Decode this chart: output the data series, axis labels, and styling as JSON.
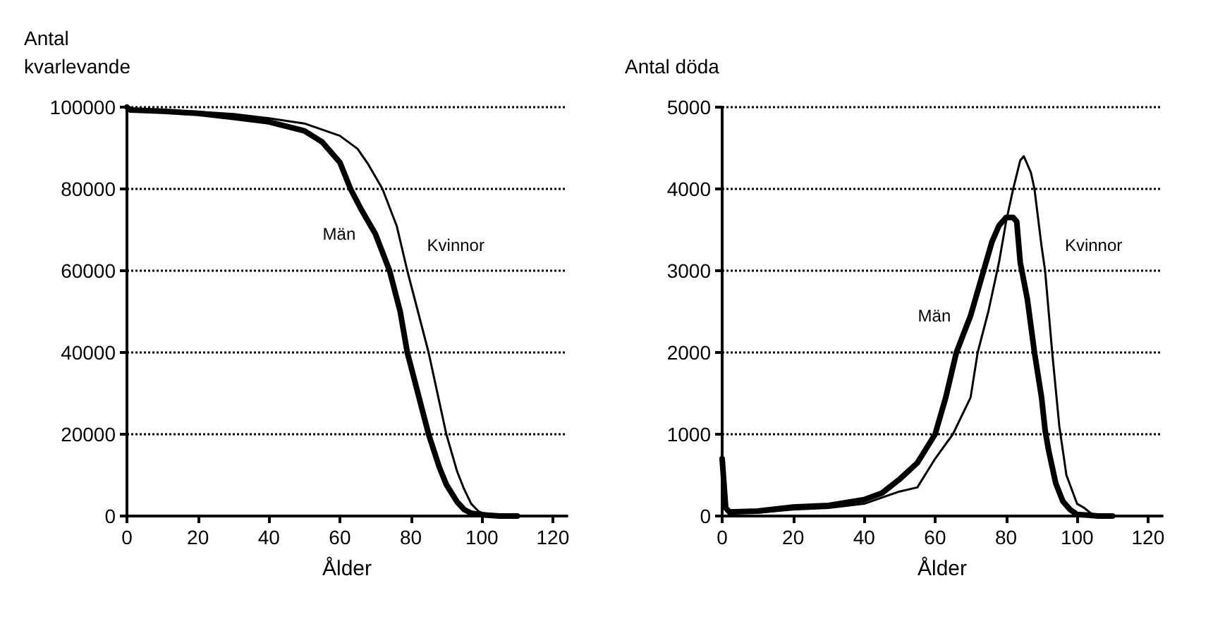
{
  "chart_data": [
    {
      "type": "line",
      "ylabel": "Antal kvarlevande",
      "xlabel": "Ålder",
      "xlim": [
        0,
        124
      ],
      "xticks": [
        0,
        20,
        40,
        60,
        80,
        100,
        120
      ],
      "ylim": [
        0,
        100000
      ],
      "yticks": [
        0,
        20000,
        40000,
        60000,
        80000,
        100000
      ],
      "grid": "y",
      "legend": false,
      "marker": "none",
      "line_style": "solid",
      "series": [
        {
          "name": "Män",
          "color": "#000000",
          "x": [
            0,
            1,
            10,
            20,
            30,
            40,
            50,
            55,
            60,
            63,
            66,
            70,
            74,
            77,
            79,
            82,
            85,
            88,
            90,
            93,
            95,
            97,
            100,
            105,
            110
          ],
          "values": [
            100000,
            99300,
            99000,
            98500,
            97500,
            96400,
            94200,
            91500,
            86500,
            80000,
            75000,
            69000,
            60000,
            50000,
            40000,
            30000,
            20000,
            12000,
            7700,
            3500,
            1600,
            700,
            300,
            0,
            0
          ]
        },
        {
          "name": "Kvinnor",
          "color": "#000000",
          "x": [
            0,
            1,
            10,
            20,
            30,
            40,
            50,
            60,
            65,
            68,
            72,
            76,
            79,
            82,
            85,
            88,
            90,
            93,
            95,
            97,
            99,
            100,
            105,
            110
          ],
          "values": [
            100000,
            99400,
            99200,
            98900,
            98300,
            97300,
            96000,
            93000,
            89800,
            86000,
            80000,
            71000,
            60000,
            50000,
            40000,
            28000,
            20000,
            11000,
            6600,
            3000,
            1200,
            800,
            100,
            0
          ]
        }
      ]
    },
    {
      "type": "line",
      "ylabel": "Antal döda",
      "xlabel": "Ålder",
      "xlim": [
        0,
        124
      ],
      "xticks": [
        0,
        20,
        40,
        60,
        80,
        100,
        120
      ],
      "ylim": [
        0,
        5000
      ],
      "yticks": [
        0,
        1000,
        2000,
        3000,
        4000,
        5000
      ],
      "grid": "y",
      "legend": false,
      "marker": "none",
      "line_style": "solid",
      "series": [
        {
          "name": "Män",
          "color": "#000000",
          "x": [
            0,
            1,
            2,
            10,
            20,
            30,
            40,
            45,
            50,
            55,
            60,
            63,
            66,
            70,
            73,
            76,
            78,
            80,
            82,
            83,
            84,
            86,
            88,
            90,
            91,
            92,
            94,
            96,
            98,
            100,
            103,
            106,
            110
          ],
          "values": [
            700,
            100,
            50,
            60,
            110,
            130,
            200,
            280,
            450,
            650,
            1000,
            1450,
            2000,
            2450,
            2900,
            3350,
            3550,
            3650,
            3650,
            3600,
            3100,
            2650,
            2000,
            1450,
            1050,
            800,
            400,
            180,
            80,
            20,
            10,
            0,
            0
          ]
        },
        {
          "name": "Kvinnor",
          "color": "#000000",
          "x": [
            0,
            1,
            2,
            10,
            20,
            30,
            40,
            50,
            55,
            60,
            65,
            70,
            72,
            75,
            78,
            80,
            82,
            84,
            85,
            86,
            87,
            88,
            90,
            91,
            93,
            95,
            97,
            100,
            102,
            104,
            106,
            110
          ],
          "values": [
            600,
            80,
            40,
            40,
            80,
            100,
            150,
            300,
            350,
            700,
            1000,
            1450,
            2000,
            2500,
            3100,
            3600,
            4000,
            4350,
            4400,
            4300,
            4200,
            4000,
            3300,
            3000,
            2000,
            1100,
            500,
            150,
            100,
            30,
            0,
            0
          ]
        }
      ]
    }
  ]
}
